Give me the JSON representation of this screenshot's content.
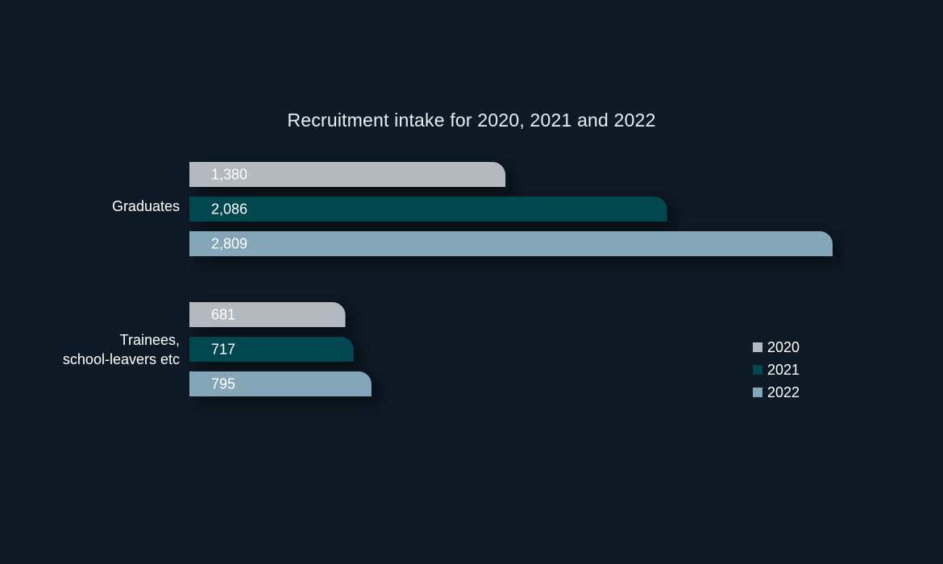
{
  "chart_data": {
    "type": "bar",
    "orientation": "horizontal",
    "title": "Recruitment intake for 2020, 2021 and 2022",
    "categories": [
      "Graduates",
      "Trainees,\nschool-leavers etc"
    ],
    "series": [
      {
        "name": "2020",
        "color": "#b4b9bf",
        "values": [
          1380,
          681
        ],
        "labels": [
          "1,380",
          "681"
        ]
      },
      {
        "name": "2021",
        "color": "#02474f",
        "values": [
          2086,
          717
        ],
        "labels": [
          "2,086",
          "717"
        ]
      },
      {
        "name": "2022",
        "color": "#85a6b9",
        "values": [
          2809,
          795
        ],
        "labels": [
          "2,809",
          "795"
        ]
      }
    ],
    "legend_position": "right",
    "grid": false
  },
  "colors": {
    "background": "#0e1a26"
  }
}
